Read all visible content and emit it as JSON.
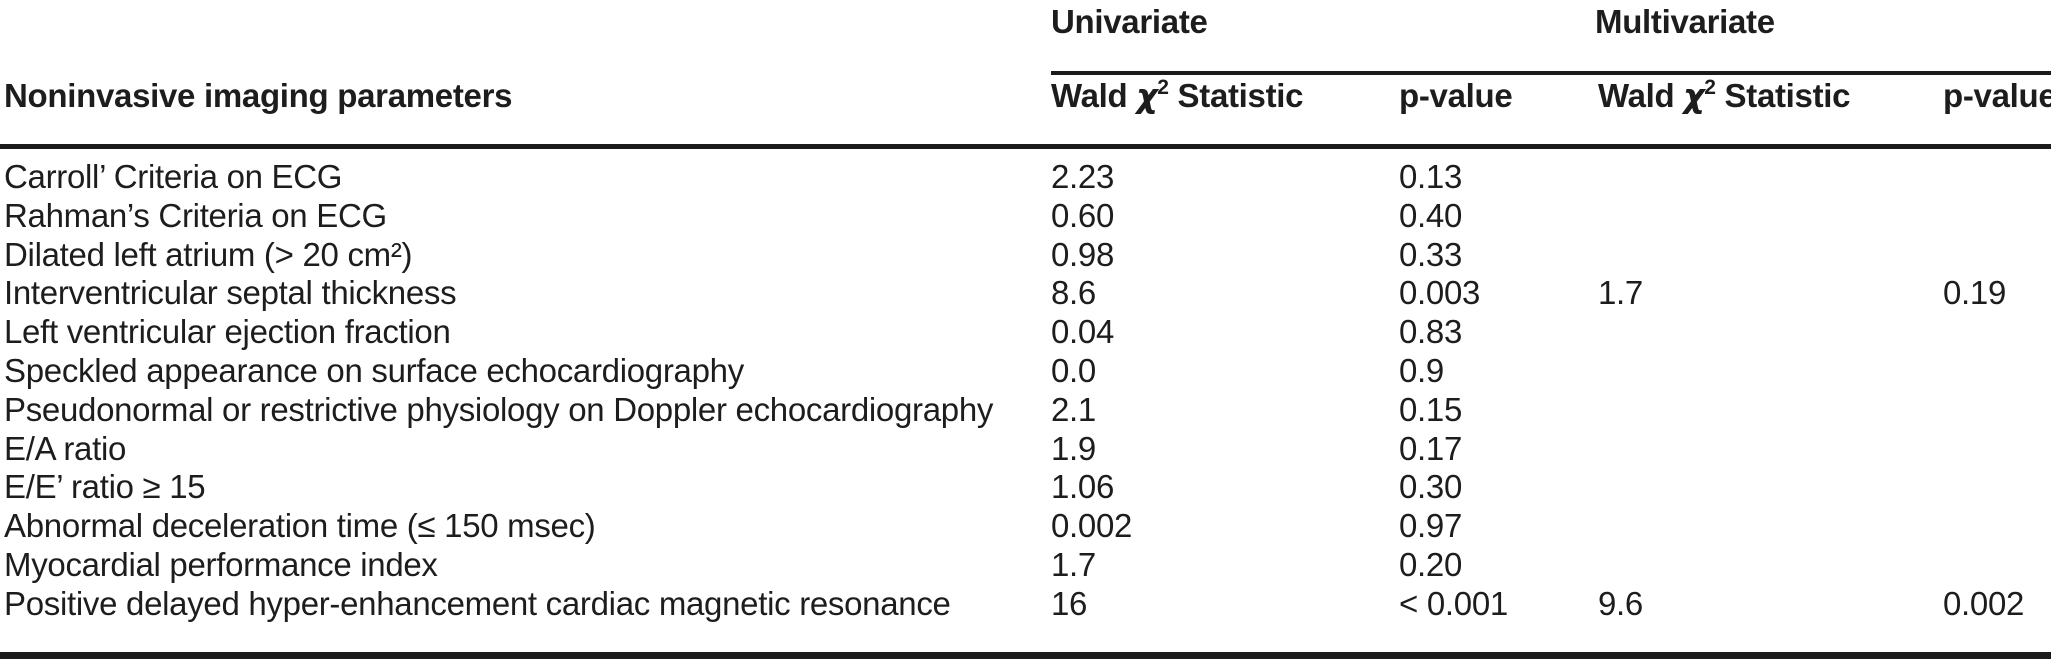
{
  "table": {
    "group_headers": {
      "univariate": "Univariate",
      "multivariate": "Multivariate"
    },
    "columns": {
      "parameter": "Noninvasive imaging parameters",
      "wald": {
        "pre": "Wald ",
        "chi": "χ",
        "sup": "2",
        "post": " Statistic"
      },
      "p_value": "p-value"
    },
    "rows": [
      {
        "parameter": "Carroll’ Criteria on ECG",
        "uni_wald": "2.23",
        "uni_p": "0.13",
        "multi_wald": "",
        "multi_p": ""
      },
      {
        "parameter": "Rahman’s Criteria on ECG",
        "uni_wald": "0.60",
        "uni_p": "0.40",
        "multi_wald": "",
        "multi_p": ""
      },
      {
        "parameter": "Dilated left atrium (> 20 cm²)",
        "uni_wald": "0.98",
        "uni_p": "0.33",
        "multi_wald": "",
        "multi_p": ""
      },
      {
        "parameter": "Interventricular septal thickness",
        "uni_wald": "8.6",
        "uni_p": "0.003",
        "multi_wald": "1.7",
        "multi_p": "0.19"
      },
      {
        "parameter": "Left ventricular ejection fraction",
        "uni_wald": "0.04",
        "uni_p": "0.83",
        "multi_wald": "",
        "multi_p": ""
      },
      {
        "parameter": "Speckled appearance on surface echocardiography",
        "uni_wald": "0.0",
        "uni_p": "0.9",
        "multi_wald": "",
        "multi_p": ""
      },
      {
        "parameter": "Pseudonormal or restrictive physiology on Doppler echocardiography",
        "uni_wald": "2.1",
        "uni_p": "0.15",
        "multi_wald": "",
        "multi_p": ""
      },
      {
        "parameter": "E/A ratio",
        "uni_wald": "1.9",
        "uni_p": "0.17",
        "multi_wald": "",
        "multi_p": ""
      },
      {
        "parameter": "E/E’ ratio ≥ 15",
        "uni_wald": "1.06",
        "uni_p": "0.30",
        "multi_wald": "",
        "multi_p": ""
      },
      {
        "parameter": "Abnormal deceleration time (≤ 150 msec)",
        "uni_wald": "0.002",
        "uni_p": "0.97",
        "multi_wald": "",
        "multi_p": ""
      },
      {
        "parameter": "Myocardial performance index",
        "uni_wald": "1.7",
        "uni_p": "0.20",
        "multi_wald": "",
        "multi_p": ""
      },
      {
        "parameter": "Positive delayed hyper-enhancement cardiac magnetic resonance",
        "uni_wald": "16",
        "uni_p": "< 0.001",
        "multi_wald": "9.6",
        "multi_p": "0.002"
      }
    ]
  },
  "colors": {
    "text": "#1d1d1d",
    "rule": "#1b1b1b",
    "background": "#ffffff"
  }
}
